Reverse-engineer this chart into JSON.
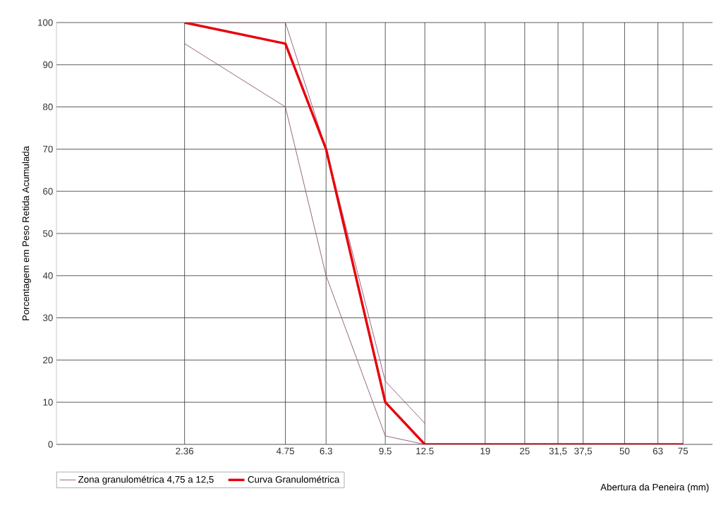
{
  "chart_data": {
    "type": "line",
    "xlabel": "Abertura da Peneira (mm)",
    "ylabel": "Porcentagem em Peso Retida Acumulada",
    "log": "x",
    "xlim": [
      0.97,
      92
    ],
    "ylim": [
      0,
      100
    ],
    "xticks": [
      {
        "value": 2.36,
        "label": "2.36"
      },
      {
        "value": 4.75,
        "label": "4.75"
      },
      {
        "value": 6.3,
        "label": "6.3"
      },
      {
        "value": 9.5,
        "label": "9.5"
      },
      {
        "value": 12.5,
        "label": "12.5"
      },
      19,
      25,
      {
        "value": 31.5,
        "label": "31,5"
      },
      {
        "value": 37.5,
        "label": "37,5"
      },
      50,
      63,
      75
    ],
    "yticks": [
      0,
      10,
      20,
      30,
      40,
      50,
      60,
      70,
      80,
      90,
      100
    ],
    "grid": true,
    "legend": "bottom",
    "marker": "none",
    "line_style": "solid",
    "series": [
      {
        "name": "Zona granulométrica 4,75 a 12,5",
        "color": "#8c5a78",
        "x": [
          2.36,
          4.75,
          6.3,
          9.5,
          12.5
        ],
        "values": [
          100,
          100,
          70,
          15,
          5
        ]
      },
      {
        "color": "#8c5a78",
        "x": [
          2.36,
          4.75,
          6.3,
          9.5,
          12.5
        ],
        "values": [
          95,
          80,
          40,
          2,
          0
        ]
      },
      {
        "name": "Curva Granulométrica",
        "color": "#e8000b",
        "x": [
          2.36,
          4.75,
          6.3,
          9.5,
          12.5,
          19,
          25,
          31.5,
          37.5,
          50,
          63,
          75
        ],
        "values": [
          100,
          95,
          70,
          10,
          0,
          0,
          0,
          0,
          0,
          0,
          0,
          0
        ]
      }
    ]
  }
}
